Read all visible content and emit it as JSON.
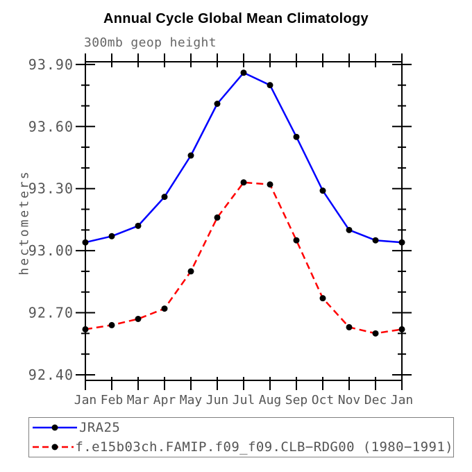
{
  "title": "Annual Cycle Global Mean Climatology",
  "subtitle": "300mb geop height",
  "y_axis_label": "hectometers",
  "colors": {
    "series1": "#0000ff",
    "series2": "#ff0000",
    "marker": "#000000",
    "axis": "#000000",
    "tick_label_text": "#555555",
    "subtitle_text": "#666666",
    "legend_border": "#808080",
    "background": "#ffffff"
  },
  "legend": {
    "items": [
      {
        "label": "JRA25",
        "color": "#0000ff",
        "style": "solid",
        "marker": "filled-circle"
      },
      {
        "label": "f.e15b03ch.FAMIP.f09_f09.CLB−RDG00 (1980−1991)",
        "color": "#ff0000",
        "style": "dashed",
        "marker": "filled-circle"
      }
    ],
    "position": "bottom-left-box"
  },
  "chart_data": {
    "type": "line",
    "title": "Annual Cycle Global Mean Climatology",
    "subtitle": "300mb geop height",
    "xlabel": "",
    "ylabel": "hectometers",
    "categories": [
      "Jan",
      "Feb",
      "Mar",
      "Apr",
      "May",
      "Jun",
      "Jul",
      "Aug",
      "Sep",
      "Oct",
      "Nov",
      "Dec",
      "Jan"
    ],
    "series": [
      {
        "name": "JRA25",
        "color": "#0000ff",
        "line_style": "solid",
        "marker": "filled-circle",
        "values": [
          93.04,
          93.07,
          93.12,
          93.26,
          93.46,
          93.71,
          93.86,
          93.8,
          93.55,
          93.29,
          93.1,
          93.05,
          93.04
        ]
      },
      {
        "name": "f.e15b03ch.FAMIP.f09_f09.CLB−RDG00 (1980−1991)",
        "color": "#ff0000",
        "line_style": "dashed",
        "marker": "filled-circle",
        "values": [
          92.62,
          92.64,
          92.67,
          92.72,
          92.9,
          93.16,
          93.33,
          93.32,
          93.05,
          92.77,
          92.63,
          92.6,
          92.62
        ]
      }
    ],
    "ylim": [
      92.37,
      93.92
    ],
    "yticks_major": [
      93.9,
      93.6,
      93.3,
      93.0,
      92.7,
      92.4
    ],
    "ytick_labels": [
      "93.90",
      "93.60",
      "93.30",
      "93.00",
      "92.70",
      "92.40"
    ],
    "ytick_minor_step": 0.1,
    "grid": false,
    "legend_position": "bottom"
  }
}
